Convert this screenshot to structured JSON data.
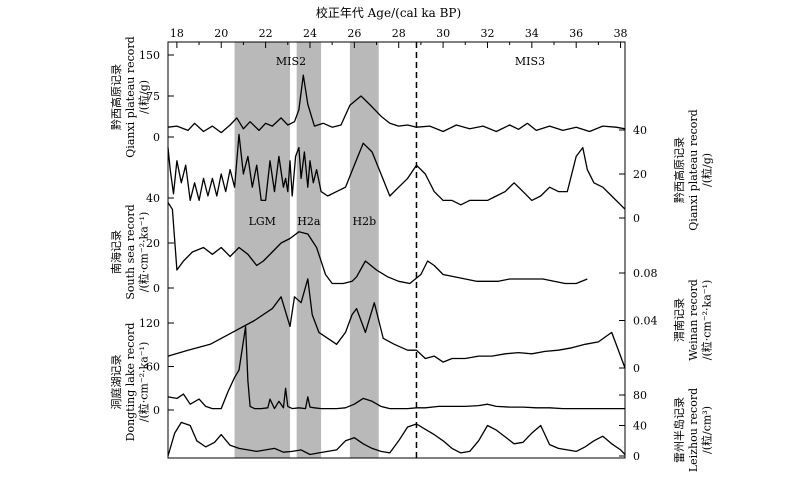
{
  "chart_data": {
    "type": "line",
    "x_axis": {
      "label": "校正年代 Age/(cal ka BP)",
      "range": [
        17.6,
        38.2
      ],
      "ticks": [
        18,
        20,
        22,
        24,
        26,
        28,
        30,
        32,
        34,
        36,
        38
      ],
      "tick_labels": [
        "18",
        "20",
        "22",
        "24",
        "26",
        "28",
        "30",
        "32",
        "34",
        "36",
        "38"
      ]
    },
    "shaded_intervals": [
      {
        "name": "LGM",
        "label": "LGM",
        "x0": 20.6,
        "x1": 23.1
      },
      {
        "name": "H2a",
        "label": "H2a",
        "x0": 23.4,
        "x1": 24.5
      },
      {
        "name": "H2b",
        "label": "H2b",
        "x0": 25.8,
        "x1": 27.1
      }
    ],
    "boundary": {
      "x": 28.8,
      "style": "dashed",
      "left_label": "MIS2",
      "right_label": "MIS3"
    },
    "axes": [
      {
        "key": "qianxi_left",
        "side": "left",
        "range": [
          0,
          150
        ],
        "ticks": [
          0,
          75,
          150
        ],
        "tick_labels": [
          "0",
          "75",
          "150"
        ],
        "title_lines": [
          "黔西高原记录",
          "Qianxi plateau record",
          "/(粒/g)"
        ]
      },
      {
        "key": "qianxi_right",
        "side": "right",
        "range": [
          0,
          40
        ],
        "ticks": [
          0,
          20,
          40
        ],
        "tick_labels": [
          "0",
          "20",
          "40"
        ],
        "title_lines": [
          "黔西高原记录",
          "Qianxi plateau record",
          "/(粒/g)"
        ]
      },
      {
        "key": "southsea",
        "side": "left",
        "range": [
          0,
          40
        ],
        "ticks": [
          0,
          20,
          40
        ],
        "tick_labels": [
          "0",
          "20",
          "40"
        ],
        "title_lines": [
          "南海记录",
          "South sea record",
          "/(粒·cm⁻²·ka⁻¹)"
        ]
      },
      {
        "key": "weinan",
        "side": "right",
        "range": [
          0,
          0.08
        ],
        "ticks": [
          0,
          0.04,
          0.08
        ],
        "tick_labels": [
          "0",
          "0.04",
          "0.08"
        ],
        "title_lines": [
          "渭南记录",
          "Weinan record",
          "/(粒·cm⁻²·ka⁻¹)"
        ]
      },
      {
        "key": "dongting",
        "side": "left",
        "range": [
          0,
          120
        ],
        "ticks": [
          0,
          60,
          120
        ],
        "tick_labels": [
          "0",
          "60",
          "120"
        ],
        "title_lines": [
          "洞庭湖记录",
          "Dongting lake record",
          "/(粒·cm⁻²·ka⁻¹)"
        ]
      },
      {
        "key": "leizhou",
        "side": "right",
        "range": [
          0,
          80
        ],
        "ticks": [
          0,
          40,
          80
        ],
        "tick_labels": [
          "0",
          "40",
          "80"
        ],
        "title_lines": [
          "雷州半岛记录",
          "Leizhou record",
          "/(粒/cm³)"
        ]
      }
    ],
    "series": [
      {
        "key": "qianxi_left_curve",
        "axis": "qianxi_left",
        "x": [
          17.6,
          18.0,
          18.5,
          18.8,
          19.2,
          19.6,
          20.0,
          20.4,
          20.7,
          21.0,
          21.3,
          21.7,
          22.0,
          22.3,
          22.7,
          23.0,
          23.3,
          23.5,
          23.7,
          23.9,
          24.2,
          24.6,
          25.0,
          25.4,
          25.8,
          26.3,
          26.8,
          27.2,
          27.6,
          28.0,
          28.4,
          28.8,
          29.4,
          30.0,
          30.6,
          31.2,
          31.8,
          32.4,
          33.0,
          33.4,
          33.8,
          34.2,
          34.8,
          35.4,
          36.0,
          36.6,
          37.2,
          37.8,
          38.2
        ],
        "y": [
          18,
          20,
          12,
          25,
          10,
          20,
          8,
          22,
          35,
          15,
          28,
          12,
          25,
          20,
          35,
          22,
          28,
          50,
          113,
          60,
          20,
          25,
          18,
          22,
          58,
          75,
          55,
          38,
          25,
          20,
          22,
          18,
          20,
          10,
          22,
          15,
          20,
          10,
          22,
          14,
          25,
          12,
          20,
          12,
          18,
          10,
          20,
          18,
          15
        ]
      },
      {
        "key": "qianxi_right_curve",
        "axis": "qianxi_right",
        "x": [
          17.6,
          17.7,
          17.85,
          18.0,
          18.2,
          18.4,
          18.6,
          18.8,
          19.0,
          19.2,
          19.4,
          19.6,
          19.8,
          20.0,
          20.2,
          20.4,
          20.6,
          20.8,
          21.0,
          21.1,
          21.2,
          21.4,
          21.6,
          21.8,
          22.0,
          22.2,
          22.4,
          22.6,
          22.8,
          22.9,
          23.0,
          23.1,
          23.2,
          23.35,
          23.5,
          23.6,
          23.75,
          23.9,
          24.0,
          24.15,
          24.3,
          24.5,
          24.8,
          25.2,
          25.6,
          26.0,
          26.4,
          26.8,
          27.2,
          27.6,
          28.0,
          28.4,
          28.8,
          29.2,
          29.6,
          30.0,
          30.4,
          30.8,
          31.2,
          31.6,
          32.0,
          32.4,
          32.8,
          33.2,
          33.6,
          34.0,
          34.4,
          34.8,
          35.2,
          35.6,
          36.0,
          36.3,
          36.5,
          36.8,
          37.2,
          37.6,
          38.0,
          38.2
        ],
        "y": [
          32,
          22,
          11,
          26,
          16,
          24,
          8,
          16,
          8,
          18,
          10,
          18,
          10,
          20,
          12,
          22,
          14,
          38,
          20,
          24,
          28,
          14,
          24,
          8,
          8,
          26,
          12,
          28,
          14,
          18,
          12,
          26,
          10,
          28,
          32,
          18,
          30,
          14,
          26,
          16,
          22,
          12,
          10,
          12,
          14,
          24,
          34,
          30,
          20,
          10,
          14,
          18,
          24,
          20,
          12,
          8,
          8,
          6,
          8,
          8,
          8,
          10,
          12,
          16,
          12,
          8,
          10,
          14,
          12,
          12,
          28,
          32,
          22,
          16,
          14,
          10,
          6,
          4
        ]
      },
      {
        "key": "southsea_curve",
        "axis": "southsea",
        "x": [
          17.6,
          17.8,
          18.0,
          18.3,
          18.7,
          19.2,
          19.6,
          20.0,
          20.4,
          20.8,
          21.2,
          21.6,
          21.9,
          22.3,
          22.7,
          23.1,
          23.5,
          23.9,
          24.3,
          24.7,
          25.0,
          25.5,
          25.9,
          26.1,
          26.5,
          27.0,
          27.5,
          28.0,
          28.5,
          29.0,
          29.3,
          29.6,
          30.0,
          30.5,
          31.0,
          31.5,
          32.0,
          32.5,
          33.0,
          33.5,
          34.0,
          34.5,
          35.0,
          35.5,
          36.0,
          36.5
        ],
        "y": [
          38,
          35,
          8,
          12,
          16,
          18,
          15,
          18,
          14,
          18,
          15,
          10,
          12,
          16,
          20,
          22,
          25,
          24,
          18,
          6,
          2,
          2,
          3,
          5,
          12,
          8,
          5,
          3,
          2,
          6,
          12,
          10,
          6,
          5,
          4,
          3,
          3,
          3,
          4,
          4,
          4,
          4,
          3,
          2,
          2,
          4
        ]
      },
      {
        "key": "weinan_curve",
        "axis": "weinan",
        "x": [
          17.6,
          18.5,
          19.5,
          20.5,
          21.5,
          22.3,
          22.7,
          23.1,
          23.3,
          23.6,
          23.9,
          24.1,
          24.4,
          24.8,
          25.2,
          25.6,
          25.9,
          26.1,
          26.5,
          26.9,
          27.3,
          27.8,
          28.4,
          28.8,
          29.2,
          29.6,
          30.0,
          30.4,
          31.0,
          31.6,
          32.2,
          32.8,
          33.4,
          34.0,
          34.6,
          35.2,
          35.8,
          36.4,
          37.0,
          37.6,
          38.0,
          38.2
        ],
        "y": [
          0.01,
          0.015,
          0.02,
          0.03,
          0.04,
          0.05,
          0.06,
          0.035,
          0.06,
          0.055,
          0.075,
          0.045,
          0.03,
          0.025,
          0.02,
          0.03,
          0.045,
          0.05,
          0.03,
          0.055,
          0.025,
          0.02,
          0.015,
          0.015,
          0.008,
          0.01,
          0.005,
          0.008,
          0.008,
          0.01,
          0.01,
          0.012,
          0.013,
          0.012,
          0.014,
          0.015,
          0.017,
          0.02,
          0.022,
          0.03,
          0.01,
          0.0
        ]
      },
      {
        "key": "dongting_curve",
        "axis": "dongting",
        "x": [
          17.6,
          18.0,
          18.3,
          18.6,
          19.0,
          19.3,
          19.6,
          20.0,
          20.3,
          20.6,
          20.8,
          21.0,
          21.1,
          21.2,
          21.3,
          21.5,
          21.8,
          22.1,
          22.2,
          22.4,
          22.6,
          22.8,
          22.9,
          23.0,
          23.2,
          23.5,
          23.8,
          23.9,
          24.0,
          24.2,
          24.5,
          24.8,
          25.2,
          25.6,
          26.0,
          26.4,
          26.8,
          27.2,
          27.6,
          28.0,
          28.4,
          28.8,
          29.2,
          29.8,
          30.4,
          31.0,
          31.6,
          32.0,
          32.4,
          33.0,
          33.6,
          34.2,
          34.8,
          35.4,
          36.0,
          36.6,
          37.2,
          37.8,
          38.2
        ],
        "y": [
          18,
          16,
          22,
          8,
          15,
          5,
          2,
          2,
          25,
          45,
          55,
          95,
          115,
          40,
          5,
          2,
          2,
          3,
          15,
          2,
          12,
          3,
          30,
          5,
          2,
          3,
          2,
          18,
          4,
          3,
          2,
          2,
          2,
          3,
          8,
          16,
          12,
          5,
          2,
          2,
          2,
          3,
          3,
          5,
          5,
          5,
          6,
          8,
          5,
          4,
          4,
          3,
          3,
          2,
          2,
          2,
          2,
          2,
          2
        ]
      },
      {
        "key": "leizhou_curve",
        "axis": "leizhou",
        "x": [
          17.6,
          17.9,
          18.2,
          18.6,
          18.9,
          19.3,
          19.7,
          20.0,
          20.4,
          20.8,
          21.2,
          21.6,
          22.0,
          22.4,
          22.8,
          23.2,
          23.6,
          24.0,
          24.4,
          24.8,
          25.2,
          25.6,
          26.0,
          26.4,
          26.8,
          27.2,
          27.6,
          28.0,
          28.4,
          28.8,
          29.2,
          29.6,
          30.0,
          30.4,
          30.8,
          31.2,
          31.6,
          32.0,
          32.4,
          32.8,
          33.2,
          33.6,
          34.0,
          34.4,
          34.8,
          35.2,
          35.6,
          36.0,
          36.4,
          36.8,
          37.2,
          37.6,
          38.0,
          38.2
        ],
        "y": [
          0,
          30,
          44,
          40,
          20,
          12,
          18,
          28,
          14,
          10,
          8,
          6,
          8,
          10,
          5,
          6,
          8,
          2,
          4,
          6,
          8,
          20,
          24,
          16,
          10,
          6,
          4,
          20,
          38,
          42,
          35,
          28,
          20,
          10,
          4,
          6,
          20,
          40,
          34,
          25,
          16,
          18,
          30,
          40,
          15,
          10,
          8,
          6,
          12,
          20,
          26,
          16,
          8,
          2
        ]
      }
    ]
  }
}
